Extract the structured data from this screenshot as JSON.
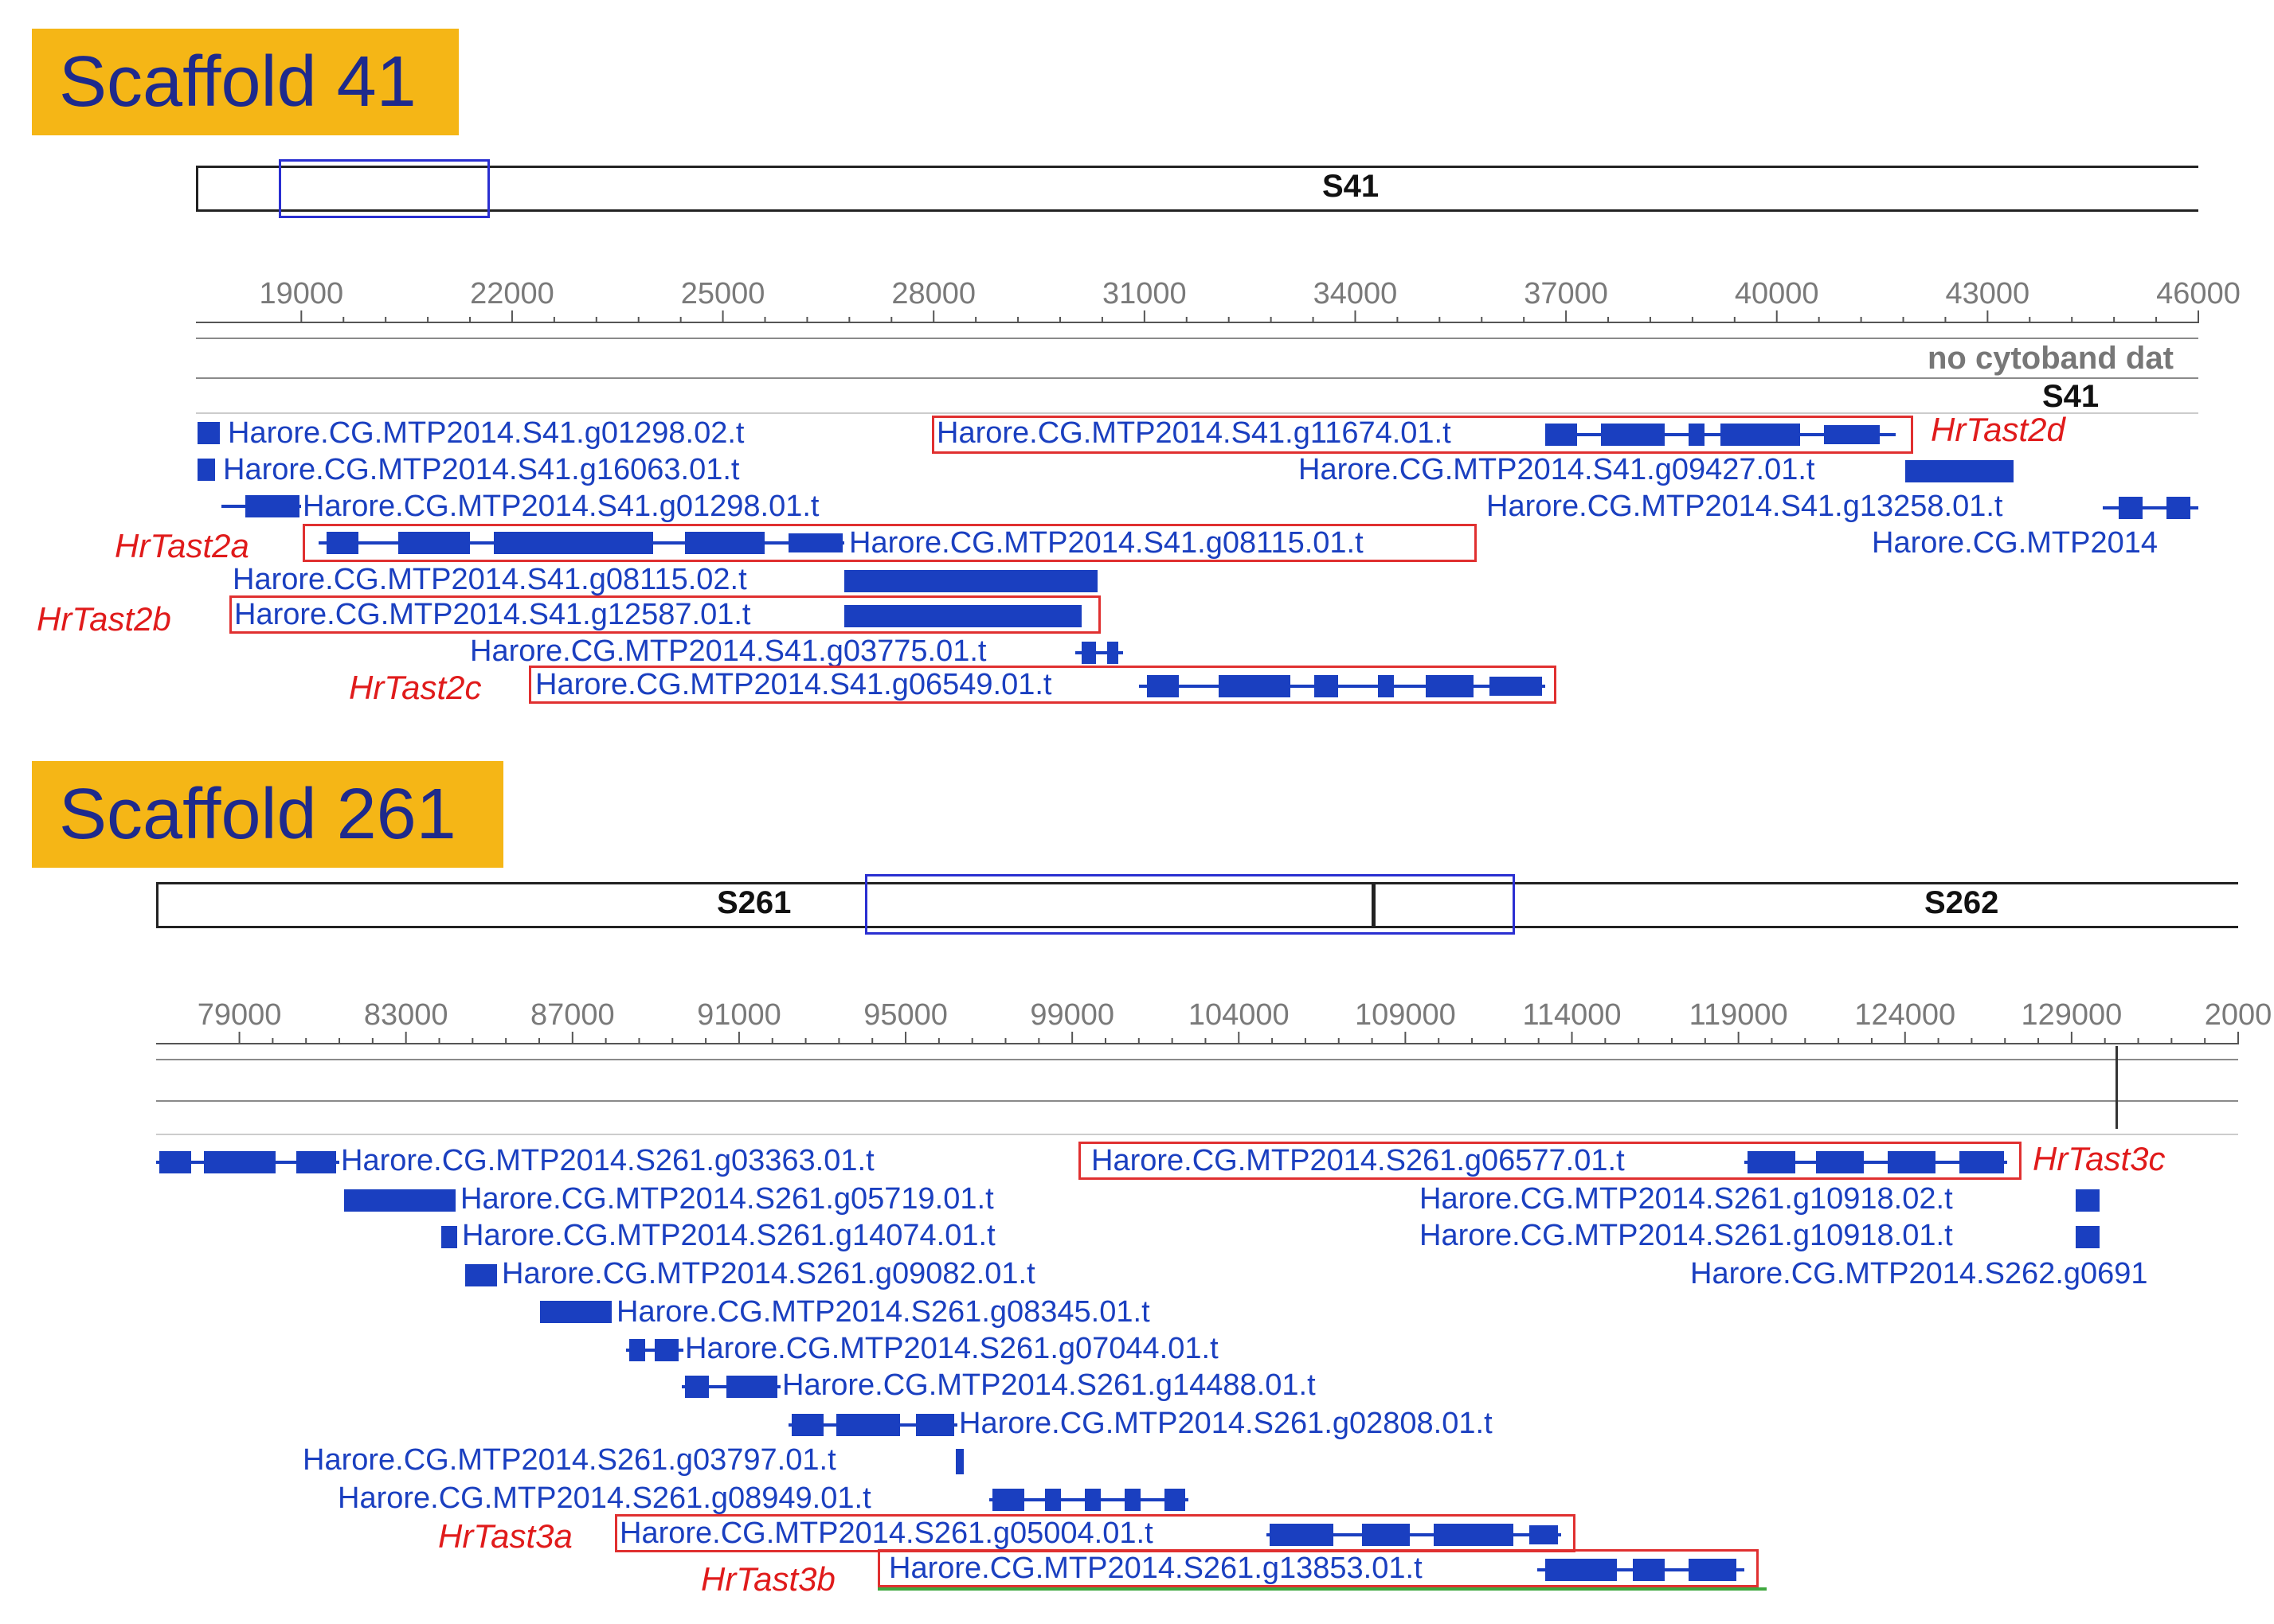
{
  "colors": {
    "title_bg": "#f5b616",
    "title_text": "#1e2a8c",
    "gene": "#1a3fc0",
    "red": "#e01b1b",
    "select": "#2a2fd1"
  },
  "scaffold41": {
    "title": "Scaffold 41",
    "ideogram_label": "S41",
    "ruler_ticks": [
      "19000",
      "22000",
      "25000",
      "28000",
      "31000",
      "34000",
      "37000",
      "40000",
      "43000",
      "46000"
    ],
    "cytoband_text": "no cytoband dat",
    "track_label": "S41",
    "genes": [
      "Harore.CG.MTP2014.S41.g01298.02.t",
      "Harore.CG.MTP2014.S41.g11674.01.t",
      "Harore.CG.MTP2014.S41.g16063.01.t",
      "Harore.CG.MTP2014.S41.g09427.01.t",
      "Harore.CG.MTP2014.S41.g01298.01.t",
      "Harore.CG.MTP2014.S41.g13258.01.t",
      "Harore.CG.MTP2014.S41.g08115.01.t",
      "Harore.CG.MTP2014",
      "Harore.CG.MTP2014.S41.g08115.02.t",
      "Harore.CG.MTP2014.S41.g12587.01.t",
      "Harore.CG.MTP2014.S41.g03775.01.t",
      "Harore.CG.MTP2014.S41.g06549.01.t"
    ],
    "names": [
      "HrTast2d",
      "HrTast2a",
      "HrTast2b",
      "HrTast2c"
    ]
  },
  "scaffold261": {
    "title": "Scaffold 261",
    "ideogram_left": "S261",
    "ideogram_right": "S262",
    "ruler_ticks": [
      "79000",
      "83000",
      "87000",
      "91000",
      "95000",
      "99000",
      "104000",
      "109000",
      "114000",
      "119000",
      "124000",
      "129000",
      "2000"
    ],
    "genes": [
      "Harore.CG.MTP2014.S261.g03363.01.t",
      "Harore.CG.MTP2014.S261.g06577.01.t",
      "Harore.CG.MTP2014.S261.g05719.01.t",
      "Harore.CG.MTP2014.S261.g10918.02.t",
      "Harore.CG.MTP2014.S261.g14074.01.t",
      "Harore.CG.MTP2014.S261.g10918.01.t",
      "Harore.CG.MTP2014.S261.g09082.01.t",
      "Harore.CG.MTP2014.S262.g0691",
      "Harore.CG.MTP2014.S261.g08345.01.t",
      "Harore.CG.MTP2014.S261.g07044.01.t",
      "Harore.CG.MTP2014.S261.g14488.01.t",
      "Harore.CG.MTP2014.S261.g02808.01.t",
      "Harore.CG.MTP2014.S261.g03797.01.t",
      "Harore.CG.MTP2014.S261.g08949.01.t",
      "Harore.CG.MTP2014.S261.g05004.01.t",
      "Harore.CG.MTP2014.S261.g13853.01.t"
    ],
    "names": [
      "HrTast3c",
      "HrTast3a",
      "HrTast3b"
    ]
  }
}
